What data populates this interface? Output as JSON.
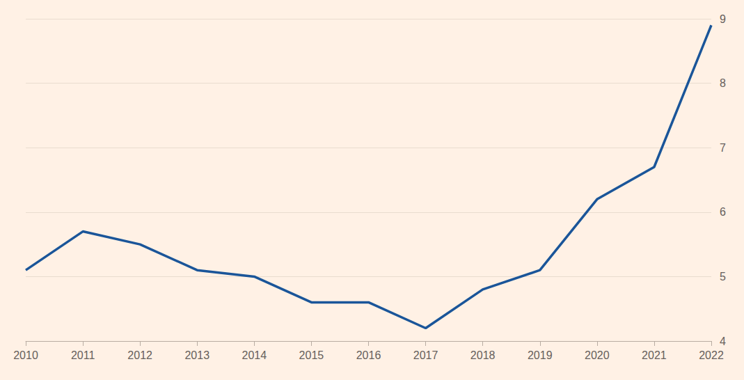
{
  "chart_data": {
    "type": "line",
    "categories": [
      "2010",
      "2011",
      "2012",
      "2013",
      "2014",
      "2015",
      "2016",
      "2017",
      "2018",
      "2019",
      "2020",
      "2021",
      "2022"
    ],
    "values": [
      5.1,
      5.7,
      5.5,
      5.1,
      5.0,
      4.6,
      4.6,
      4.2,
      4.8,
      5.1,
      6.2,
      6.7,
      8.9
    ],
    "color": "#1a5599",
    "ylim": [
      4,
      9
    ],
    "yticks": [
      4,
      5,
      6,
      7,
      8,
      9
    ],
    "grid": true
  }
}
